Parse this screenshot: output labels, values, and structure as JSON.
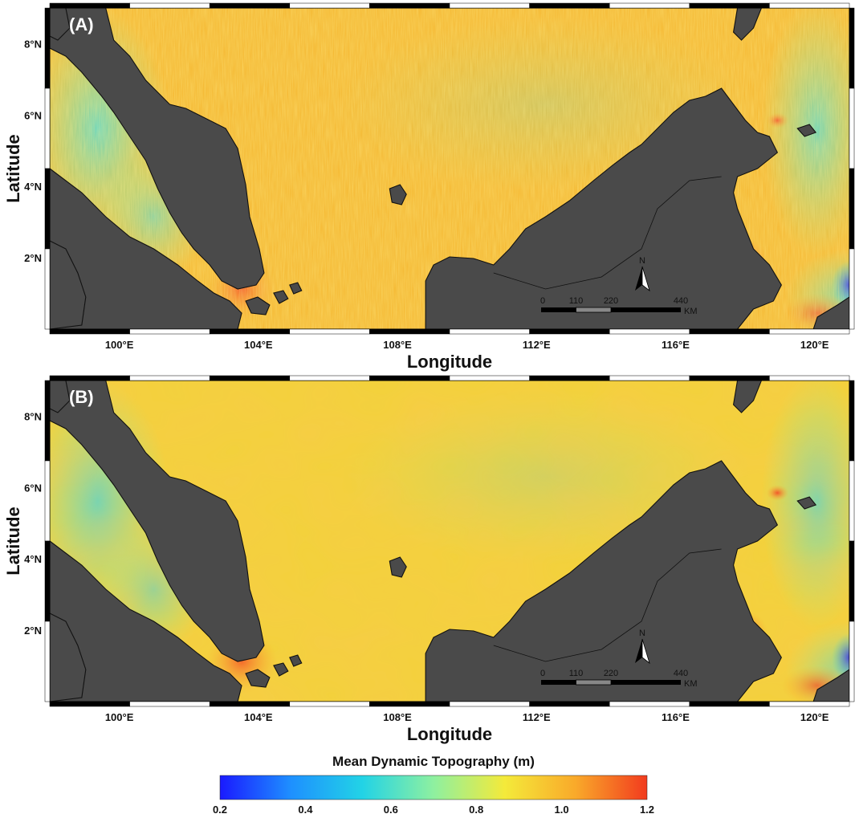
{
  "panels": [
    {
      "id": "A",
      "label": "(A)",
      "texture": "noisy"
    },
    {
      "id": "B",
      "label": "(B)",
      "texture": "smooth"
    }
  ],
  "axes": {
    "xlabel": "Longitude",
    "ylabel": "Latitude",
    "lon_range": [
      98,
      121
    ],
    "lat_range": [
      0,
      9
    ],
    "lon_ticks": [
      "100°E",
      "104°E",
      "108°E",
      "112°E",
      "116°E",
      "120°E"
    ],
    "lat_ticks": [
      "2°N",
      "4°N",
      "6°N",
      "8°N"
    ]
  },
  "scale_bar": {
    "labels": [
      "0",
      "110",
      "220",
      "440"
    ],
    "unit": "KM"
  },
  "north_arrow": {
    "label": "N"
  },
  "colorbar": {
    "title": "Mean Dynamic Topography (m)",
    "ticks": [
      "0.2",
      "0.4",
      "0.6",
      "0.8",
      "1.0",
      "1.2"
    ],
    "range": [
      0.2,
      1.2
    ],
    "colors": [
      "#1a1aff",
      "#1e90ff",
      "#22d3e6",
      "#8ef0a0",
      "#f4ea3a",
      "#f9a92a",
      "#f23b1e"
    ]
  },
  "colors": {
    "land": "#4a4a4a",
    "sea_a": "#f4b62e",
    "sea_b": "#f2d23a"
  }
}
